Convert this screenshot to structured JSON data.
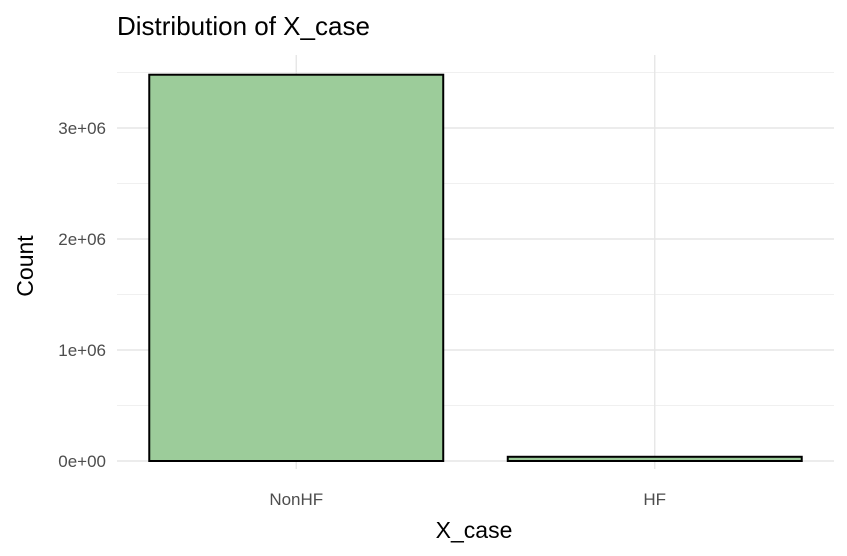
{
  "chart_data": {
    "type": "bar",
    "title": "Distribution of X_case",
    "xlabel": "X_case",
    "ylabel": "Count",
    "categories": [
      "NonHF",
      "HF"
    ],
    "values": [
      3480000,
      38000
    ],
    "ylim": [
      0,
      3500000
    ],
    "y_ticks": [
      0,
      1000000,
      2000000,
      3000000
    ],
    "y_tick_labels": [
      "0e+00",
      "1e+06",
      "2e+06",
      "3e+06"
    ],
    "bar_fill": "#9ccc9a",
    "bar_outline": "#000000",
    "grid": true,
    "legend": "none"
  }
}
